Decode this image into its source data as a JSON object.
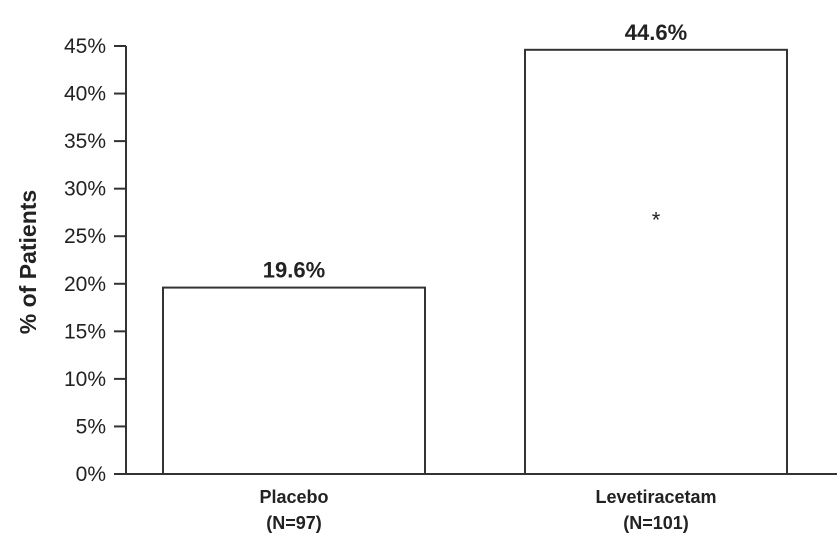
{
  "chart_data": {
    "type": "bar",
    "categories": [
      "Placebo",
      "Levetiracetam"
    ],
    "category_sublabels": [
      "(N=97)",
      "(N=101)"
    ],
    "values": [
      19.6,
      44.6
    ],
    "data_labels": [
      "19.6%",
      "44.6%"
    ],
    "ylabel": "% of Patients",
    "ylim": [
      0,
      45
    ],
    "yticks": [
      "0%",
      "5%",
      "10%",
      "15%",
      "20%",
      "25%",
      "30%",
      "35%",
      "40%",
      "45%"
    ],
    "annotations": [
      {
        "category": "Levetiracetam",
        "text": "*"
      }
    ],
    "grid": false,
    "colors": {
      "bar_fill": "#ffffff",
      "bar_stroke": "#333333",
      "text": "#222222"
    }
  }
}
